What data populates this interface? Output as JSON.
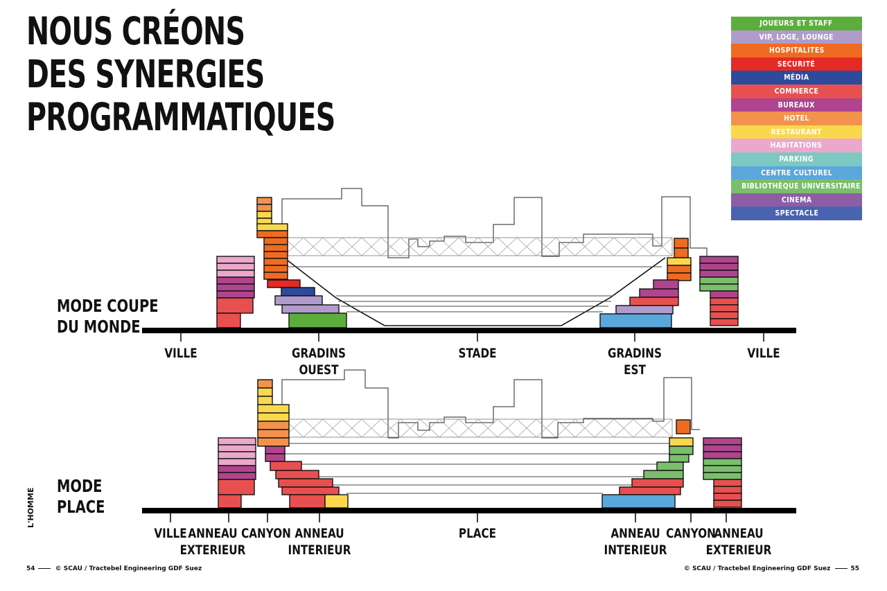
{
  "title": [
    "NOUS CRÉONS",
    "DES SYNERGIES",
    "PROGRAMMATIQUES"
  ],
  "legend": [
    {
      "label": "JOUEURS ET STAFF",
      "color": "#5cae3c"
    },
    {
      "label": "VIP, LOGE, LOUNGE",
      "color": "#b09ccb"
    },
    {
      "label": "HOSPITALITES",
      "color": "#ef6b22"
    },
    {
      "label": "SECURITÉ",
      "color": "#e42a24"
    },
    {
      "label": "MÉDIA",
      "color": "#2d4a9c"
    },
    {
      "label": "COMMERCE",
      "color": "#e8504f"
    },
    {
      "label": "BUREAUX",
      "color": "#b0448e"
    },
    {
      "label": "HOTEL",
      "color": "#f2924d"
    },
    {
      "label": "RESTAURANT",
      "color": "#f9d84e"
    },
    {
      "label": "HABITATIONS",
      "color": "#eba8cc"
    },
    {
      "label": "PARKING",
      "color": "#7dc8c0"
    },
    {
      "label": "CENTRE CULTUREL",
      "color": "#5aa7dc"
    },
    {
      "label": "BIBLIOTHÈQUE UNIVERSITAIRE",
      "color": "#7bbe6c"
    },
    {
      "label": "CINEMA",
      "color": "#8d5ea6"
    },
    {
      "label": "SPECTACLE",
      "color": "#4a63b0"
    }
  ],
  "modes": {
    "coupe": {
      "lines": [
        "MODE COUPE",
        "DU MONDE"
      ]
    },
    "place": {
      "lines": [
        "MODE",
        "PLACE"
      ]
    }
  },
  "zones_top": [
    {
      "lines": [
        "VILLE"
      ]
    },
    {
      "lines": [
        "GRADINS",
        "OUEST"
      ]
    },
    {
      "lines": [
        "STADE"
      ]
    },
    {
      "lines": [
        "GRADINS",
        "EST"
      ]
    },
    {
      "lines": [
        "VILLE"
      ]
    }
  ],
  "zones_bottom": [
    {
      "lines": [
        "VILLE"
      ]
    },
    {
      "lines": [
        "ANNEAU",
        "EXTERIEUR"
      ]
    },
    {
      "lines": [
        "CANYON"
      ]
    },
    {
      "lines": [
        "ANNEAU",
        "INTERIEUR"
      ]
    },
    {
      "lines": [
        "PLACE"
      ]
    },
    {
      "lines": [
        "ANNEAU",
        "INTERIEUR"
      ]
    },
    {
      "lines": [
        "CANYON"
      ]
    },
    {
      "lines": [
        "ANNEAU",
        "EXTERIEUR"
      ]
    }
  ],
  "side_label": "L'HOMME",
  "footer": {
    "left_page": "54",
    "left_credit": "© SCAU / Tractebel Engineering GDF Suez",
    "right_credit": "© SCAU / Tractebel Engineering GDF Suez",
    "right_page": "55"
  }
}
